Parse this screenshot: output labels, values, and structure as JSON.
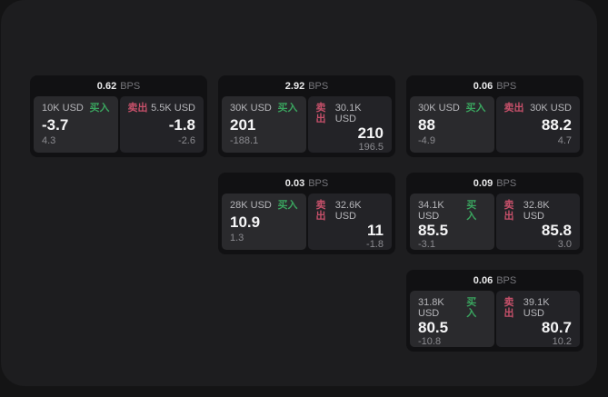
{
  "labels": {
    "bps": "BPS",
    "buy": "买入",
    "sell": "卖出"
  },
  "colors": {
    "buy_green": "#3aa55f",
    "sell_red": "#c6506a",
    "panel_bg": "#1d1d1f",
    "card_bg": "#111113"
  },
  "cards": [
    {
      "col": 1,
      "row": 1,
      "bps": "0.62",
      "buy_amount": "10K USD",
      "buy_value": "-3.7",
      "buy_sub": "4.3",
      "sell_amount": "5.5K USD",
      "sell_value": "-1.8",
      "sell_sub": "-2.6"
    },
    {
      "col": 2,
      "row": 1,
      "bps": "2.92",
      "buy_amount": "30K USD",
      "buy_value": "201",
      "buy_sub": "-188.1",
      "sell_amount": "30.1K USD",
      "sell_value": "210",
      "sell_sub": "196.5"
    },
    {
      "col": 3,
      "row": 1,
      "bps": "0.06",
      "buy_amount": "30K USD",
      "buy_value": "88",
      "buy_sub": "-4.9",
      "sell_amount": "30K USD",
      "sell_value": "88.2",
      "sell_sub": "4.7"
    },
    {
      "col": 2,
      "row": 2,
      "bps": "0.03",
      "buy_amount": "28K USD",
      "buy_value": "10.9",
      "buy_sub": "1.3",
      "sell_amount": "32.6K USD",
      "sell_value": "11",
      "sell_sub": "-1.8"
    },
    {
      "col": 3,
      "row": 2,
      "bps": "0.09",
      "buy_amount": "34.1K USD",
      "buy_value": "85.5",
      "buy_sub": "-3.1",
      "sell_amount": "32.8K USD",
      "sell_value": "85.8",
      "sell_sub": "3.0"
    },
    {
      "col": 3,
      "row": 3,
      "bps": "0.06",
      "buy_amount": "31.8K USD",
      "buy_value": "80.5",
      "buy_sub": "-10.8",
      "sell_amount": "39.1K USD",
      "sell_value": "80.7",
      "sell_sub": "10.2"
    }
  ]
}
